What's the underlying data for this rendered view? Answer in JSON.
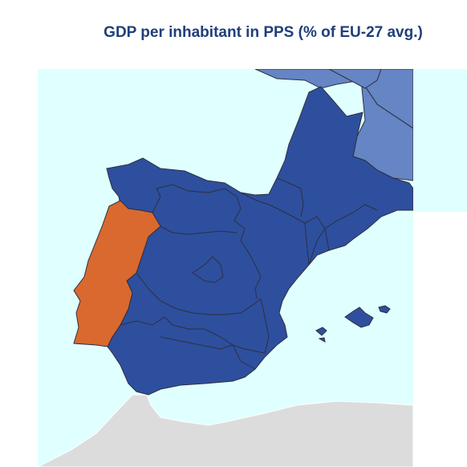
{
  "title": "GDP per inhabitant in PPS (% of EU-27 avg.)",
  "colors": {
    "sea": "#e0ffff",
    "land_outside": "#dcdcdc",
    "spain": "#2d4f9e",
    "portugal": "#d9692f",
    "france": "#6585c4",
    "border": "#2f2f3f"
  },
  "regions": [
    {
      "name": "Spain",
      "color_key": "spain"
    },
    {
      "name": "Portugal",
      "color_key": "portugal"
    },
    {
      "name": "France",
      "color_key": "france"
    }
  ]
}
